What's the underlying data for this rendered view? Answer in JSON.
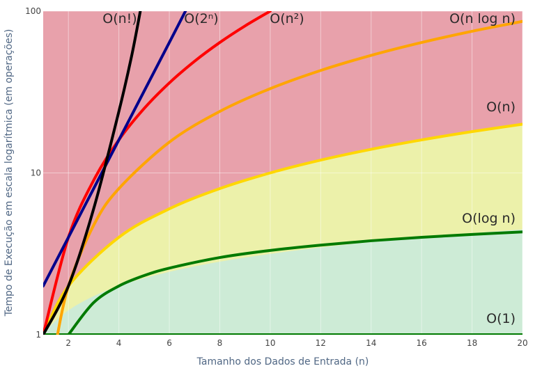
{
  "chart_data": {
    "type": "line",
    "title": "",
    "xlabel": "Tamanho dos Dados de Entrada (n)",
    "ylabel": "Tempo de Execução em escala logarítmica (em operações)",
    "x_range": [
      1,
      20
    ],
    "y_range": [
      1,
      100
    ],
    "y_scale": "log",
    "x_ticks": [
      2,
      4,
      6,
      8,
      10,
      12,
      14,
      16,
      18,
      20
    ],
    "y_ticks": [
      {
        "value": 1,
        "label": "1"
      },
      {
        "value": 10,
        "label": "10"
      },
      {
        "value": 100,
        "label": "100"
      }
    ],
    "regions": [
      {
        "color": "#e8a1ab",
        "note": "above y = n"
      },
      {
        "color": "#ecf1aa",
        "note": "between y = n^(1/2) and y = n^2"
      },
      {
        "color": "#cdebd6",
        "note": "below y = n^(1/2)"
      }
    ],
    "series": [
      {
        "name": "O(1)",
        "color": "#007a00",
        "x": [
          1,
          20
        ],
        "y": [
          1,
          1
        ]
      },
      {
        "name": "O(log n)",
        "color": "#007a00",
        "x": [
          2,
          3,
          4,
          5,
          6,
          8,
          10,
          12,
          14,
          16,
          18,
          20
        ],
        "y": [
          1.0,
          1.58,
          2.0,
          2.32,
          2.58,
          3.0,
          3.32,
          3.58,
          3.81,
          4.0,
          4.17,
          4.32
        ]
      },
      {
        "name": "O(n)",
        "color": "#ffd700",
        "x": [
          1,
          2,
          4,
          6,
          8,
          10,
          12,
          14,
          16,
          18,
          20
        ],
        "y": [
          1,
          2,
          4,
          6,
          8,
          10,
          12,
          14,
          16,
          18,
          20
        ]
      },
      {
        "name": "O(n log n)",
        "color": "#ffa500",
        "x": [
          1.5,
          2,
          3,
          4,
          6,
          8,
          10,
          12,
          14,
          16,
          18,
          20
        ],
        "y": [
          0.88,
          2.0,
          4.75,
          8.0,
          15.5,
          24.0,
          33.2,
          43.0,
          53.3,
          64.0,
          75.1,
          86.4
        ]
      },
      {
        "name": "O(n²)",
        "color": "#ff0000",
        "x": [
          1,
          2,
          3,
          4,
          5,
          6,
          7,
          8,
          9,
          10
        ],
        "y": [
          1,
          4,
          9,
          16,
          25,
          36,
          49,
          64,
          81,
          100
        ]
      },
      {
        "name": "O(2ⁿ)",
        "color": "#00008b",
        "x": [
          1,
          2,
          3,
          4,
          5,
          6,
          6.64
        ],
        "y": [
          2,
          4,
          8,
          16,
          32,
          64,
          100
        ]
      },
      {
        "name": "O(n!)",
        "color": "#000000",
        "x": [
          1,
          2,
          3,
          4,
          4.5,
          4.85
        ],
        "y": [
          1,
          2,
          6,
          24,
          52.3,
          100
        ]
      }
    ],
    "legend": "none",
    "grid": true,
    "annotations": [
      "O(n!)",
      "O(2ⁿ)",
      "O(n²)",
      "O(n log n)",
      "O(n)",
      "O(log n)",
      "O(1)"
    ]
  }
}
